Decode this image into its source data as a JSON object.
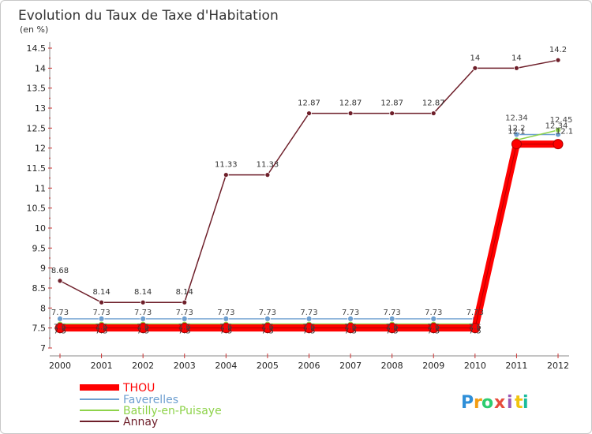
{
  "chart_data": {
    "type": "line",
    "title": "Evolution du Taux de Taxe d'Habitation",
    "subtitle": "(en %)",
    "x": [
      "2000",
      "2001",
      "2002",
      "2003",
      "2004",
      "2005",
      "2006",
      "2007",
      "2008",
      "2009",
      "2010",
      "2011",
      "2012"
    ],
    "ylim": [
      7,
      14.5
    ],
    "yticks": [
      "7",
      "7.5",
      "8",
      "8.5",
      "9",
      "9.5",
      "10",
      "10.5",
      "11",
      "11.5",
      "12",
      "12.5",
      "13",
      "13.5",
      "14",
      "14.5"
    ],
    "series": [
      {
        "name": "THOU",
        "color": "#ff0000",
        "values": [
          7.5,
          7.5,
          7.5,
          7.5,
          7.5,
          7.5,
          7.5,
          7.5,
          7.5,
          7.5,
          7.5,
          12.1,
          12.1
        ],
        "labels": [
          "7.5",
          "7.5",
          "7.5",
          "7.5",
          "7.5",
          "7.5",
          "7.5",
          "7.5",
          "7.5",
          "7.5",
          "7.5",
          "12.1",
          "12.1"
        ]
      },
      {
        "name": "Faverelles",
        "color": "#6e9fd0",
        "values": [
          7.73,
          7.73,
          7.73,
          7.73,
          7.73,
          7.73,
          7.73,
          7.73,
          7.73,
          7.73,
          7.73,
          12.34,
          12.34
        ],
        "labels": [
          "7.73",
          "7.73",
          "7.73",
          "7.73",
          "7.73",
          "7.73",
          "7.73",
          "7.73",
          "7.73",
          "7.73",
          "7.73",
          "12.34",
          "12.34"
        ]
      },
      {
        "name": "Batilly-en-Puisaye",
        "color": "#8ed34a",
        "values": [
          7.6,
          7.6,
          7.6,
          7.6,
          7.6,
          7.6,
          7.6,
          7.6,
          7.6,
          7.6,
          7.6,
          12.2,
          12.45
        ],
        "labels": [
          "7.6",
          "7.6",
          "7.6",
          "7.6",
          "7.6",
          "7.6",
          "7.6",
          "7.6",
          "7.6",
          "7.6",
          "7.6",
          "12.2",
          "12.45"
        ]
      },
      {
        "name": "Annay",
        "color": "#6e1f2a",
        "values": [
          8.68,
          8.14,
          8.14,
          8.14,
          11.33,
          11.33,
          12.87,
          12.87,
          12.87,
          12.87,
          14,
          14,
          14.2
        ],
        "labels": [
          "8.68",
          "8.14",
          "8.14",
          "8.14",
          "11.33",
          "11.33",
          "12.87",
          "12.87",
          "12.87",
          "12.87",
          "14",
          "14",
          "14.2"
        ]
      }
    ],
    "legend_position": "bottom-left",
    "grid": false
  },
  "brand": {
    "letters": [
      "P",
      "r",
      "o",
      "x",
      "i",
      "t",
      "i"
    ],
    "colors": [
      "#2f8fd8",
      "#f39c12",
      "#2ecc71",
      "#e74c3c",
      "#9b59b6",
      "#f1c40f",
      "#1abc9c"
    ]
  }
}
